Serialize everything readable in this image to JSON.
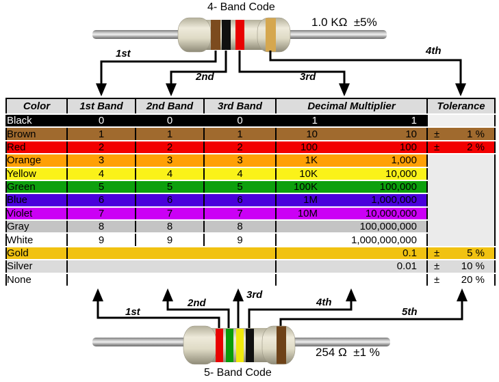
{
  "top": {
    "title": "4- Band Code",
    "value_label": "1.0 KΩ  ±5%",
    "arrows": [
      "1st",
      "2nd",
      "3rd",
      "4th"
    ],
    "band_colors": [
      {
        "name": "brown",
        "color": "#7C4B1E"
      },
      {
        "name": "black",
        "color": "#101010"
      },
      {
        "name": "red",
        "color": "#E80202"
      },
      {
        "name": "gold",
        "color": "#D5A74F"
      }
    ]
  },
  "table": {
    "headers": [
      "Color",
      "1st Band",
      "2nd Band",
      "3rd Band",
      "Decimal Multiplier",
      "Tolerance"
    ],
    "rows": [
      {
        "label": "Black",
        "bg": "#000000",
        "fg": "#FFFFFF",
        "bands": [
          "0",
          "0",
          "0"
        ],
        "mult_short": "1",
        "mult_full": "1",
        "tol": {
          "kind": "empty",
          "bg": "#F0F0F0"
        }
      },
      {
        "label": "Brown",
        "bg": "#A06A2E",
        "fg": "#000000",
        "bands": [
          "1",
          "1",
          "1"
        ],
        "mult_short": "10",
        "mult_full": "10",
        "tol": {
          "kind": "value",
          "sign": "±",
          "value": "1 %"
        }
      },
      {
        "label": "Red",
        "bg": "#F20000",
        "fg": "#000000",
        "bands": [
          "2",
          "2",
          "2"
        ],
        "mult_short": "100",
        "mult_full": "100",
        "tol": {
          "kind": "value",
          "sign": "±",
          "value": "2 %"
        }
      },
      {
        "label": "Orange",
        "bg": "#FFA005",
        "fg": "#000000",
        "bands": [
          "3",
          "3",
          "3"
        ],
        "mult_short": "1K",
        "mult_full": "1,000",
        "tol": {
          "kind": "merged-start",
          "rows": 7,
          "bg": "#EBEBEB"
        }
      },
      {
        "label": "Yellow",
        "bg": "#FAF219",
        "fg": "#000000",
        "bands": [
          "4",
          "4",
          "4"
        ],
        "mult_short": "10K",
        "mult_full": "10,000",
        "tol": {
          "kind": "merged"
        }
      },
      {
        "label": "Green",
        "bg": "#0DA00D",
        "fg": "#000000",
        "bands": [
          "5",
          "5",
          "5"
        ],
        "mult_short": "100K",
        "mult_full": "100,000",
        "tol": {
          "kind": "merged"
        }
      },
      {
        "label": "Blue",
        "bg": "#4A00DB",
        "fg": "#000000",
        "bands": [
          "6",
          "6",
          "6"
        ],
        "mult_short": "1M",
        "mult_full": "1,000,000",
        "tol": {
          "kind": "merged"
        }
      },
      {
        "label": "Violet",
        "bg": "#CB00F5",
        "fg": "#000000",
        "bands": [
          "7",
          "7",
          "7"
        ],
        "mult_short": "10M",
        "mult_full": "10,000,000",
        "tol": {
          "kind": "merged"
        }
      },
      {
        "label": "Gray",
        "bg": "#C4C4C4",
        "fg": "#000000",
        "bands": [
          "8",
          "8",
          "8"
        ],
        "mult_short": "",
        "mult_full": "100,000,000",
        "tol": {
          "kind": "merged"
        }
      },
      {
        "label": "White",
        "bg": "#FFFFFF",
        "fg": "#000000",
        "bands": [
          "9",
          "9",
          "9"
        ],
        "mult_short": "",
        "mult_full": "1,000,000,000",
        "tol": {
          "kind": "merged"
        }
      },
      {
        "label": "Gold",
        "bg": "#F1C211",
        "fg": "#000000",
        "bands_merged": true,
        "mult_short": "",
        "mult_full": "0.1",
        "tol": {
          "kind": "value",
          "sign": "±",
          "value": "5 %"
        }
      },
      {
        "label": "Silver",
        "bg": "#DBDBDB",
        "fg": "#000000",
        "bands_merged": true,
        "mult_short": "",
        "mult_full": "0.01",
        "tol": {
          "kind": "value",
          "sign": "±",
          "value": "10 %"
        }
      },
      {
        "label": "None",
        "bg": "#FFFFFF",
        "fg": "#000000",
        "bands_merged": true,
        "mult_short": "",
        "mult_full": "",
        "tol": {
          "kind": "value",
          "sign": "±",
          "value": "20 %"
        }
      }
    ]
  },
  "bottom": {
    "title": "5- Band Code",
    "value_label": "254 Ω  ±1 %",
    "arrows": [
      "1st",
      "2nd",
      "3rd",
      "4th",
      "5th"
    ],
    "band_colors": [
      {
        "name": "red",
        "color": "#E80202"
      },
      {
        "name": "green",
        "color": "#0A9B0A"
      },
      {
        "name": "yellow",
        "color": "#F0E90E"
      },
      {
        "name": "black",
        "color": "#101010"
      },
      {
        "name": "brown",
        "color": "#6E4218"
      }
    ]
  }
}
